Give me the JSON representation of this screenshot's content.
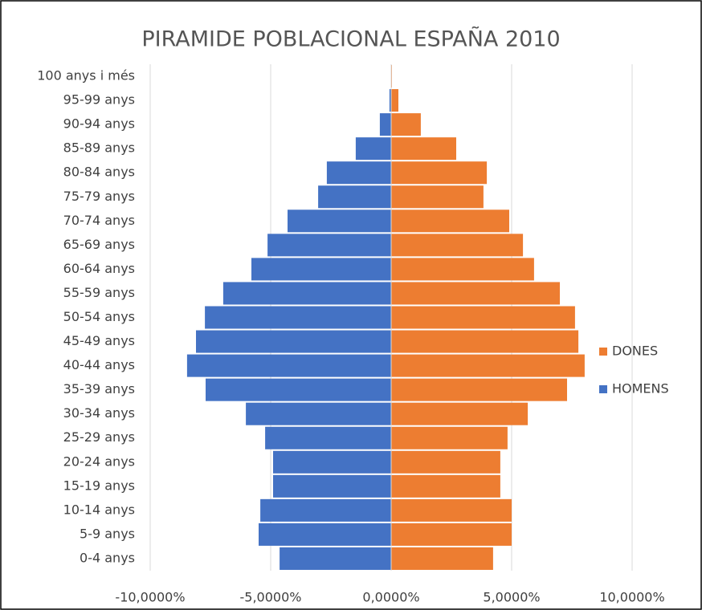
{
  "chart_data": {
    "type": "bar",
    "orientation": "horizontal",
    "title": "PIRAMIDE POBLACIONAL ESPAÑA 2010",
    "categories": [
      "0-4 anys",
      "5-9 anys",
      "10-14 anys",
      "15-19 anys",
      "20-24 anys",
      "25-29 anys",
      "30-34 anys",
      "35-39 anys",
      "40-44 anys",
      "45-49 anys",
      "50-54 anys",
      "55-59 anys",
      "60-64 anys",
      "65-69 anys",
      "70-74 anys",
      "75-79 anys",
      "80-84 anys",
      "85-89 anys",
      "90-94 anys",
      "95-99 anys",
      "100 anys i més"
    ],
    "series": [
      {
        "name": "HOMENS",
        "color": "#4472c4",
        "values": [
          -4.63,
          -5.5,
          -5.43,
          -4.9,
          -4.9,
          -5.23,
          -6.03,
          -7.7,
          -8.47,
          -8.1,
          -7.73,
          -6.97,
          -5.8,
          -5.13,
          -4.3,
          -3.03,
          -2.67,
          -1.47,
          -0.47,
          -0.07,
          -0.01
        ]
      },
      {
        "name": "DONES",
        "color": "#ed7d31",
        "values": [
          4.23,
          5.0,
          5.0,
          4.53,
          4.53,
          4.83,
          5.67,
          7.3,
          8.03,
          7.77,
          7.63,
          7.0,
          5.93,
          5.47,
          4.9,
          3.83,
          3.97,
          2.7,
          1.23,
          0.3,
          0.03
        ]
      }
    ],
    "xlim": [
      -10,
      10
    ],
    "xticks": [
      {
        "value": -10,
        "label": "-10,0000%"
      },
      {
        "value": -5,
        "label": "-5,0000%"
      },
      {
        "value": 0,
        "label": "0,0000%"
      },
      {
        "value": 5,
        "label": "5,0000%"
      },
      {
        "value": 10,
        "label": "10,0000%"
      }
    ],
    "grid": true,
    "legend": "right"
  }
}
